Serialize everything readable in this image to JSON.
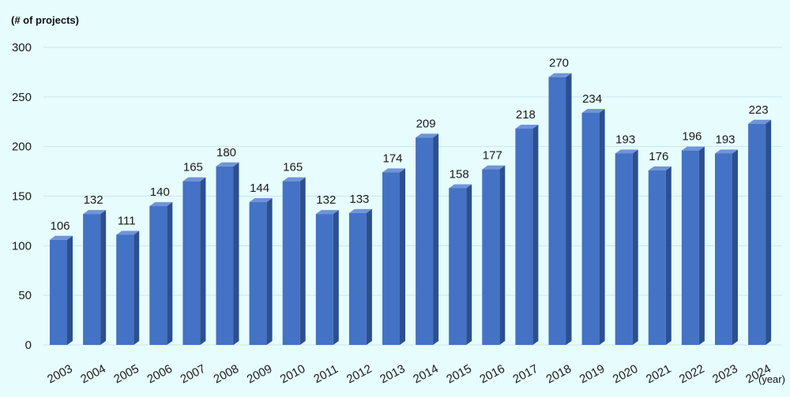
{
  "chart_data": {
    "type": "bar",
    "ylabel": "(# of projects)",
    "xlabel": "(year)",
    "ylim": [
      0,
      300
    ],
    "yticks": [
      0,
      50,
      100,
      150,
      200,
      250,
      300
    ],
    "grid": true,
    "categories": [
      "2003",
      "2004",
      "2005",
      "2006",
      "2007",
      "2008",
      "2009",
      "2010",
      "2011",
      "2012",
      "2013",
      "2014",
      "2015",
      "2016",
      "2017",
      "2018",
      "2019",
      "2020",
      "2021",
      "2022",
      "2023",
      "2024"
    ],
    "values": [
      106,
      132,
      111,
      140,
      165,
      180,
      144,
      165,
      132,
      133,
      174,
      209,
      158,
      177,
      218,
      270,
      234,
      193,
      176,
      196,
      193,
      223
    ],
    "bar_color": "#4472c4",
    "bar_side_color": "#2c4f8f",
    "bar_top_color": "#6f94d8",
    "background_color": "#e6fcfd",
    "grid_color": "#c9e6ea"
  }
}
